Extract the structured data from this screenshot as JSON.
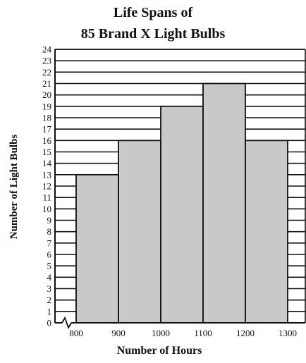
{
  "chart_data": {
    "type": "bar",
    "title_lines": [
      "Life Spans of",
      "85 Brand X Light Bulbs"
    ],
    "xlabel": "Number of Hours",
    "ylabel": "Number of Light Bulbs",
    "x_ticks": [
      "800",
      "900",
      "1000",
      "1100",
      "1200",
      "1300"
    ],
    "bins": [
      {
        "from": 800,
        "to": 900,
        "value": 13
      },
      {
        "from": 900,
        "to": 1000,
        "value": 16
      },
      {
        "from": 1000,
        "to": 1100,
        "value": 19
      },
      {
        "from": 1100,
        "to": 1200,
        "value": 21
      },
      {
        "from": 1200,
        "to": 1300,
        "value": 16
      }
    ],
    "ylim": [
      0,
      24
    ],
    "y_tick_step": 1,
    "grid": true,
    "axis_break": true,
    "colors": {
      "bar_fill": "#c9c9c9",
      "stroke": "#111111",
      "background": "#ffffff"
    }
  }
}
